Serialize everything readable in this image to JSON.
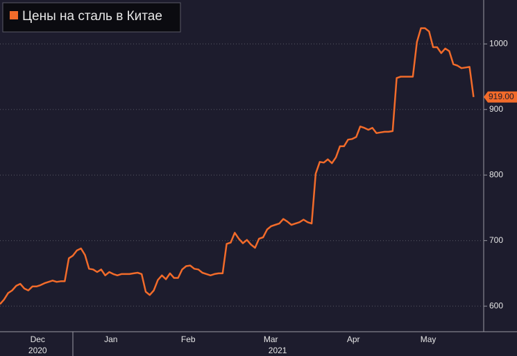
{
  "chart_data": {
    "type": "line",
    "series": [
      {
        "name": "Цены на сталь в Китае",
        "color": "#f26b2a",
        "values": [
          603,
          610,
          620,
          624,
          631,
          634,
          627,
          624,
          630,
          630,
          632,
          635,
          637,
          639,
          637,
          638,
          638,
          673,
          677,
          685,
          688,
          678,
          657,
          656,
          652,
          656,
          647,
          652,
          649,
          647,
          649,
          649,
          649,
          650,
          651,
          649,
          622,
          617,
          624,
          640,
          647,
          641,
          650,
          643,
          643,
          656,
          661,
          662,
          657,
          656,
          651,
          649,
          647,
          649,
          650,
          650,
          695,
          697,
          712,
          703,
          696,
          701,
          694,
          689,
          703,
          705,
          717,
          722,
          724,
          726,
          733,
          729,
          724,
          726,
          728,
          732,
          728,
          726,
          802,
          820,
          819,
          824,
          818,
          827,
          844,
          844,
          854,
          855,
          858,
          874,
          872,
          869,
          872,
          864,
          865,
          866,
          866,
          867,
          948,
          950,
          950,
          950,
          950,
          1003,
          1024,
          1024,
          1019,
          995,
          995,
          986,
          993,
          989,
          969,
          967,
          963,
          964,
          965,
          919
        ]
      }
    ],
    "last_label": "919.00",
    "xlim": [
      0,
      119.5
    ],
    "xticks": [
      {
        "value": 9.3,
        "label": "Dec"
      },
      {
        "value": 27.4,
        "label": "Jan"
      },
      {
        "value": 46.5,
        "label": "Feb"
      },
      {
        "value": 66.9,
        "label": "Mar"
      },
      {
        "value": 87.3,
        "label": "Apr"
      },
      {
        "value": 105.8,
        "label": "May"
      }
    ],
    "year_labels": [
      {
        "value": 9.3,
        "label": "2020"
      },
      {
        "value": 68.6,
        "label": "2021"
      }
    ],
    "ylim": [
      561,
      1067
    ],
    "yticks": [
      600,
      700,
      800,
      900,
      1000
    ],
    "grid": true
  }
}
